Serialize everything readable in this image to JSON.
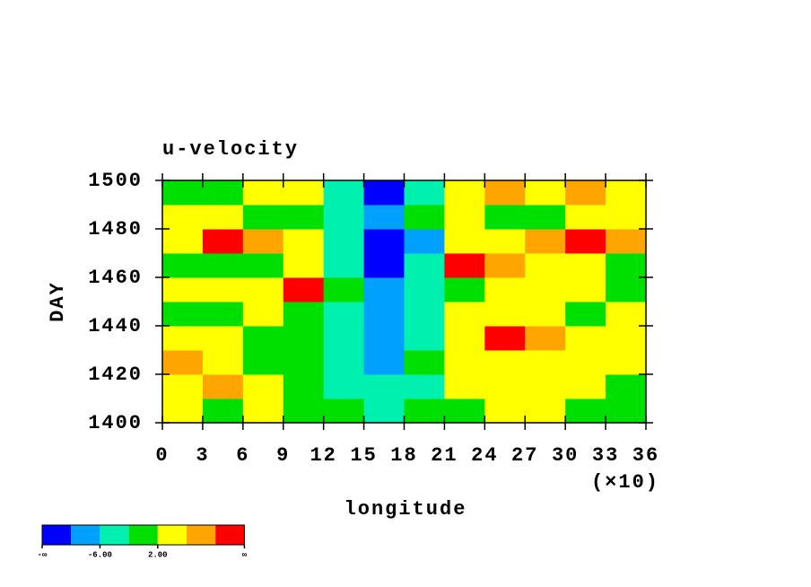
{
  "chart_data": {
    "type": "contour",
    "title": "u-velocity",
    "x_label": "longitude",
    "x_multiplier": "(×10)",
    "y_label": "DAY",
    "xlim": [
      0,
      36
    ],
    "xticks": [
      0,
      3,
      6,
      9,
      12,
      15,
      18,
      21,
      24,
      27,
      30,
      33,
      36
    ],
    "ylim": [
      1400,
      1500
    ],
    "yticks": [
      1400,
      1420,
      1440,
      1460,
      1480,
      1500
    ],
    "x": [
      1.5,
      4.5,
      7.5,
      10.5,
      13.5,
      16.5,
      19.5,
      22.5,
      25.5,
      28.5,
      31.5,
      34.5
    ],
    "y": [
      1405,
      1415,
      1425,
      1435,
      1445,
      1455,
      1465,
      1475,
      1485,
      1495
    ],
    "values": [
      [
        2,
        0,
        3,
        1,
        -2,
        -4,
        -2,
        1,
        4,
        2,
        0,
        1
      ],
      [
        4,
        6,
        2,
        0,
        -3,
        -6,
        -3,
        2,
        3,
        5,
        2,
        0
      ],
      [
        7,
        3,
        1,
        -1,
        -4,
        -7,
        -2,
        3,
        5,
        4,
        3,
        2
      ],
      [
        2,
        4,
        0,
        -2,
        -5,
        -9,
        -3,
        4,
        11,
        6,
        4,
        5
      ],
      [
        1,
        -1,
        2,
        0,
        -6,
        -8,
        -4,
        2,
        5,
        3,
        1,
        2
      ],
      [
        3,
        2,
        5,
        11,
        -2,
        -7,
        -3,
        1,
        3,
        4,
        2,
        0
      ],
      [
        0,
        -2,
        1,
        2,
        -4,
        -11,
        -6,
        11,
        6,
        3,
        4,
        1
      ],
      [
        5,
        11,
        6,
        3,
        -6,
        -12,
        -8,
        4,
        5,
        7,
        12,
        8
      ],
      [
        2,
        3,
        1,
        0,
        -4,
        -7,
        -2,
        2,
        0,
        1,
        3,
        5
      ],
      [
        0,
        -1,
        3,
        2,
        -5,
        -11,
        -3,
        4,
        8,
        3,
        7,
        2
      ]
    ],
    "levels": [
      -10,
      -6,
      -2,
      2,
      6,
      10
    ],
    "colors": [
      "#0000ff",
      "#00a0ff",
      "#00f0b0",
      "#00e000",
      "#ffff00",
      "#ffa500",
      "#ff0000"
    ],
    "colorbar_labels": [
      "-∞",
      "-6.00",
      "2.00",
      "∞"
    ]
  }
}
